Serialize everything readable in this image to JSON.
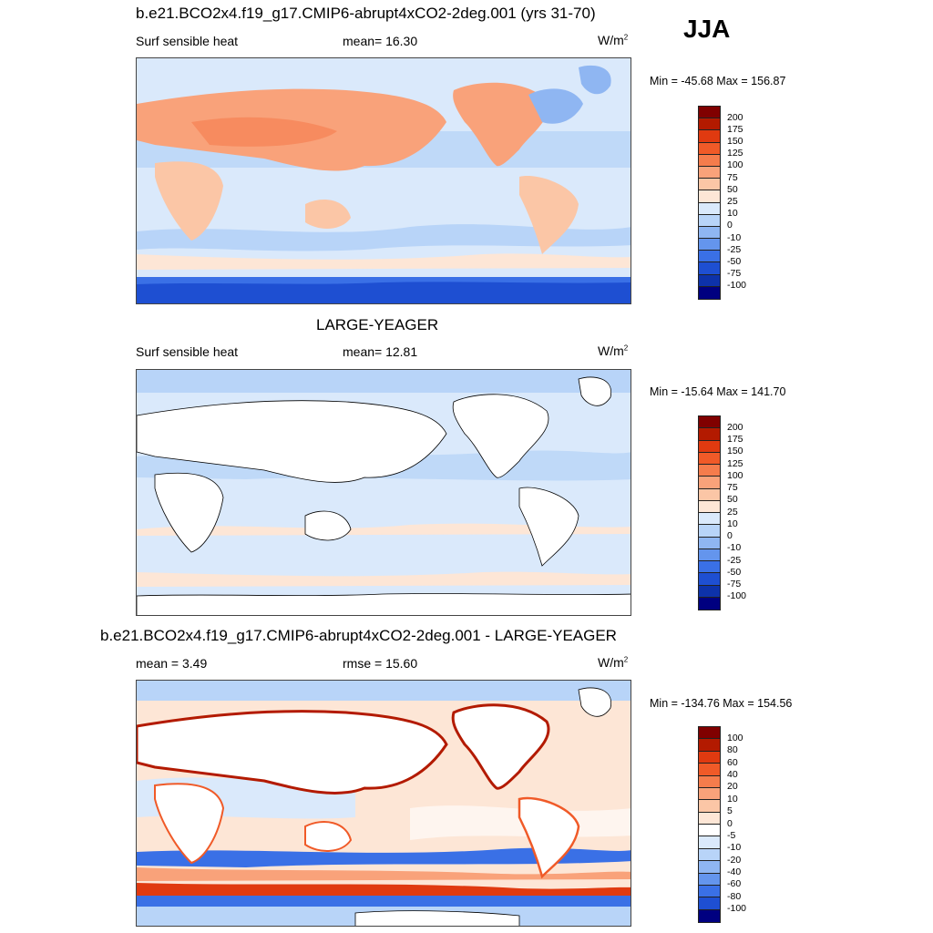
{
  "season": "JJA",
  "panels": [
    {
      "title": "b.e21.BCO2x4.f19_g17.CMIP6-abrupt4xCO2-2deg.001 (yrs 31-70)",
      "left_text": "Surf sensible heat",
      "center_text": "mean=  16.30",
      "units_base": "W/m",
      "units_exp": "2",
      "minmax": "Min = -45.68 Max = 156.87",
      "colorbar": {
        "labels": [
          "200",
          "175",
          "150",
          "125",
          "100",
          "75",
          "50",
          "25",
          "10",
          "0",
          "-10",
          "-25",
          "-50",
          "-75",
          "-100"
        ],
        "colors": [
          "#800000",
          "#b31a00",
          "#e03a10",
          "#f05a28",
          "#f57c4c",
          "#f9a27a",
          "#fbc6a6",
          "#fde6d6",
          "#dae9fb",
          "#b8d4f8",
          "#8fb6f2",
          "#6495ed",
          "#3a70e6",
          "#1e4fd2",
          "#0d32aa",
          "#000080"
        ]
      }
    },
    {
      "title": "LARGE-YEAGER",
      "left_text": "Surf sensible heat",
      "center_text": "mean=  12.81",
      "units_base": "W/m",
      "units_exp": "2",
      "minmax": "Min = -15.64 Max = 141.70",
      "colorbar": {
        "labels": [
          "200",
          "175",
          "150",
          "125",
          "100",
          "75",
          "50",
          "25",
          "10",
          "0",
          "-10",
          "-25",
          "-50",
          "-75",
          "-100"
        ],
        "colors": [
          "#800000",
          "#b31a00",
          "#e03a10",
          "#f05a28",
          "#f57c4c",
          "#f9a27a",
          "#fbc6a6",
          "#fde6d6",
          "#dae9fb",
          "#b8d4f8",
          "#8fb6f2",
          "#6495ed",
          "#3a70e6",
          "#1e4fd2",
          "#0d32aa",
          "#000080"
        ]
      }
    },
    {
      "title": "b.e21.BCO2x4.f19_g17.CMIP6-abrupt4xCO2-2deg.001 - LARGE-YEAGER",
      "left_text": "mean =   3.49",
      "center_text": "rmse =  15.60",
      "units_base": "W/m",
      "units_exp": "2",
      "minmax": "Min = -134.76 Max = 154.56",
      "colorbar": {
        "labels": [
          "100",
          "80",
          "60",
          "40",
          "20",
          "10",
          "5",
          "0",
          "-5",
          "-10",
          "-20",
          "-40",
          "-60",
          "-80",
          "-100"
        ],
        "colors": [
          "#800000",
          "#b31a00",
          "#e03a10",
          "#f05a28",
          "#f57c4c",
          "#f9a27a",
          "#fbc6a6",
          "#fde6d6",
          "#ffffff",
          "#dae9fb",
          "#b8d4f8",
          "#8fb6f2",
          "#6495ed",
          "#3a70e6",
          "#1e4fd2",
          "#000080"
        ]
      }
    }
  ]
}
